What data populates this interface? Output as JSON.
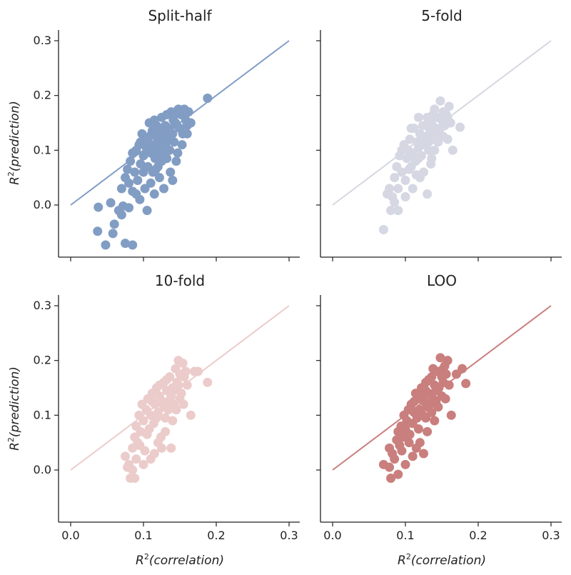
{
  "chart_data": {
    "type": "scatter",
    "layout": "2x2 grid, shared axes",
    "xlabel": "R²(correlation)",
    "ylabel": "R²(prediction)",
    "xlabel_parts": {
      "base": "R",
      "sup": "2",
      "inner": "(correlation)"
    },
    "ylabel_parts": {
      "base": "R",
      "sup": "2",
      "inner": "(prediction)"
    },
    "xlim": [
      -0.015,
      0.315
    ],
    "ylim": [
      -0.09,
      0.32
    ],
    "xticks": [
      0.0,
      0.1,
      0.2,
      0.3
    ],
    "yticks": [
      0.0,
      0.1,
      0.2,
      0.3
    ],
    "xtick_labels": [
      "0.0",
      "0.1",
      "0.2",
      "0.3"
    ],
    "ytick_labels": [
      "0.0",
      "0.1",
      "0.2",
      "0.3"
    ],
    "reference_line": {
      "x": [
        0.0,
        0.3
      ],
      "y": [
        0.0,
        0.3
      ]
    },
    "panels": [
      {
        "title": "Split-half",
        "color": "#829dc4",
        "points": [
          [
            0.038,
            -0.004
          ],
          [
            0.055,
            0.004
          ],
          [
            0.037,
            -0.048
          ],
          [
            0.048,
            -0.073
          ],
          [
            0.058,
            -0.052
          ],
          [
            0.06,
            -0.035
          ],
          [
            0.066,
            -0.01
          ],
          [
            0.07,
            -0.018
          ],
          [
            0.072,
            -0.002
          ],
          [
            0.075,
            -0.07
          ],
          [
            0.085,
            -0.073
          ],
          [
            0.08,
            -0.005
          ],
          [
            0.07,
            0.03
          ],
          [
            0.075,
            0.05
          ],
          [
            0.078,
            0.065
          ],
          [
            0.08,
            0.04
          ],
          [
            0.082,
            0.08
          ],
          [
            0.085,
            0.025
          ],
          [
            0.088,
            0.06
          ],
          [
            0.09,
            0.1
          ],
          [
            0.092,
            0.045
          ],
          [
            0.094,
            0.11
          ],
          [
            0.096,
            0.075
          ],
          [
            0.098,
            0.13
          ],
          [
            0.1,
            0.09
          ],
          [
            0.102,
            0.03
          ],
          [
            0.104,
            0.105
          ],
          [
            0.105,
            0.12
          ],
          [
            0.106,
            0.07
          ],
          [
            0.108,
            0.15
          ],
          [
            0.11,
            0.095
          ],
          [
            0.112,
            0.135
          ],
          [
            0.113,
            0.06
          ],
          [
            0.114,
            0.11
          ],
          [
            0.115,
            0.155
          ],
          [
            0.116,
            0.085
          ],
          [
            0.118,
            0.125
          ],
          [
            0.12,
            0.1
          ],
          [
            0.121,
            0.14
          ],
          [
            0.122,
            0.05
          ],
          [
            0.124,
            0.115
          ],
          [
            0.125,
            0.16
          ],
          [
            0.126,
            0.09
          ],
          [
            0.128,
            0.13
          ],
          [
            0.13,
            0.145
          ],
          [
            0.131,
            0.105
          ],
          [
            0.132,
            0.165
          ],
          [
            0.134,
            0.12
          ],
          [
            0.135,
            0.14
          ],
          [
            0.136,
            0.1
          ],
          [
            0.138,
            0.17
          ],
          [
            0.14,
            0.13
          ],
          [
            0.141,
            0.155
          ],
          [
            0.142,
            0.115
          ],
          [
            0.144,
            0.15
          ],
          [
            0.145,
            0.08
          ],
          [
            0.146,
            0.145
          ],
          [
            0.148,
            0.175
          ],
          [
            0.15,
            0.14
          ],
          [
            0.152,
            0.165
          ],
          [
            0.154,
            0.13
          ],
          [
            0.156,
            0.175
          ],
          [
            0.158,
            0.155
          ],
          [
            0.16,
            0.145
          ],
          [
            0.162,
            0.17
          ],
          [
            0.165,
            0.15
          ],
          [
            0.188,
            0.195
          ],
          [
            0.105,
            -0.01
          ],
          [
            0.095,
            0.01
          ],
          [
            0.115,
            0.02
          ],
          [
            0.128,
            0.03
          ],
          [
            0.12,
            0.07
          ],
          [
            0.125,
            0.08
          ],
          [
            0.137,
            0.06
          ],
          [
            0.147,
            0.095
          ],
          [
            0.153,
            0.11
          ],
          [
            0.14,
            0.045
          ],
          [
            0.09,
            0.02
          ],
          [
            0.1,
            0.06
          ],
          [
            0.11,
            0.04
          ],
          [
            0.085,
            0.095
          ],
          [
            0.108,
            0.125
          ],
          [
            0.118,
            0.145
          ],
          [
            0.13,
            0.11
          ],
          [
            0.143,
            0.165
          ],
          [
            0.096,
            0.115
          ],
          [
            0.132,
            0.085
          ],
          [
            0.122,
            0.095
          ],
          [
            0.137,
            0.125
          ],
          [
            0.117,
            0.065
          ],
          [
            0.16,
            0.13
          ]
        ]
      },
      {
        "title": "5-fold",
        "color": "#d5d7e3",
        "points": [
          [
            0.07,
            -0.045
          ],
          [
            0.08,
            -0.01
          ],
          [
            0.082,
            0.015
          ],
          [
            0.085,
            0.005
          ],
          [
            0.09,
            -0.01
          ],
          [
            0.075,
            0.02
          ],
          [
            0.078,
            0.03
          ],
          [
            0.085,
            0.05
          ],
          [
            0.088,
            0.07
          ],
          [
            0.09,
            0.03
          ],
          [
            0.092,
            0.09
          ],
          [
            0.095,
            0.06
          ],
          [
            0.098,
            0.11
          ],
          [
            0.1,
            0.045
          ],
          [
            0.102,
            0.085
          ],
          [
            0.104,
            0.1
          ],
          [
            0.106,
            0.12
          ],
          [
            0.108,
            0.07
          ],
          [
            0.11,
            0.095
          ],
          [
            0.112,
            0.14
          ],
          [
            0.114,
            0.08
          ],
          [
            0.116,
            0.115
          ],
          [
            0.118,
            0.105
          ],
          [
            0.12,
            0.13
          ],
          [
            0.122,
            0.09
          ],
          [
            0.124,
            0.145
          ],
          [
            0.126,
            0.11
          ],
          [
            0.128,
            0.125
          ],
          [
            0.13,
            0.16
          ],
          [
            0.132,
            0.1
          ],
          [
            0.134,
            0.135
          ],
          [
            0.136,
            0.15
          ],
          [
            0.138,
            0.12
          ],
          [
            0.14,
            0.175
          ],
          [
            0.142,
            0.14
          ],
          [
            0.144,
            0.16
          ],
          [
            0.146,
            0.13
          ],
          [
            0.148,
            0.19
          ],
          [
            0.15,
            0.155
          ],
          [
            0.152,
            0.17
          ],
          [
            0.154,
            0.145
          ],
          [
            0.156,
            0.165
          ],
          [
            0.158,
            0.12
          ],
          [
            0.16,
            0.18
          ],
          [
            0.162,
            0.15
          ],
          [
            0.165,
            0.1
          ],
          [
            0.175,
            0.142
          ],
          [
            0.12,
            0.05
          ],
          [
            0.125,
            0.06
          ],
          [
            0.13,
            0.02
          ],
          [
            0.11,
            0.03
          ],
          [
            0.1,
            0.015
          ],
          [
            0.115,
            0.055
          ],
          [
            0.135,
            0.075
          ],
          [
            0.14,
            0.1
          ],
          [
            0.145,
            0.115
          ],
          [
            0.105,
            0.065
          ],
          [
            0.095,
            0.1
          ],
          [
            0.118,
            0.16
          ],
          [
            0.128,
            0.145
          ],
          [
            0.138,
            0.165
          ],
          [
            0.148,
            0.14
          ],
          [
            0.152,
            0.125
          ],
          [
            0.158,
            0.16
          ],
          [
            0.112,
            0.09
          ],
          [
            0.122,
            0.125
          ],
          [
            0.132,
            0.115
          ],
          [
            0.142,
            0.125
          ],
          [
            0.108,
            0.14
          ],
          [
            0.118,
            0.085
          ],
          [
            0.136,
            0.085
          ]
        ]
      },
      {
        "title": "10-fold",
        "color": "#ebcccb",
        "points": [
          [
            0.075,
            0.025
          ],
          [
            0.078,
            0.005
          ],
          [
            0.082,
            -0.015
          ],
          [
            0.088,
            -0.015
          ],
          [
            0.085,
            0.0
          ],
          [
            0.08,
            0.01
          ],
          [
            0.09,
            0.02
          ],
          [
            0.085,
            0.04
          ],
          [
            0.088,
            0.06
          ],
          [
            0.09,
            0.08
          ],
          [
            0.092,
            0.05
          ],
          [
            0.094,
            0.1
          ],
          [
            0.096,
            0.07
          ],
          [
            0.098,
            0.12
          ],
          [
            0.1,
            0.09
          ],
          [
            0.102,
            0.035
          ],
          [
            0.104,
            0.11
          ],
          [
            0.106,
            0.13
          ],
          [
            0.108,
            0.075
          ],
          [
            0.11,
            0.1
          ],
          [
            0.112,
            0.14
          ],
          [
            0.114,
            0.085
          ],
          [
            0.116,
            0.12
          ],
          [
            0.118,
            0.15
          ],
          [
            0.12,
            0.105
          ],
          [
            0.122,
            0.135
          ],
          [
            0.124,
            0.06
          ],
          [
            0.126,
            0.125
          ],
          [
            0.128,
            0.16
          ],
          [
            0.13,
            0.095
          ],
          [
            0.132,
            0.145
          ],
          [
            0.134,
            0.11
          ],
          [
            0.136,
            0.17
          ],
          [
            0.138,
            0.135
          ],
          [
            0.14,
            0.15
          ],
          [
            0.142,
            0.12
          ],
          [
            0.144,
            0.185
          ],
          [
            0.146,
            0.16
          ],
          [
            0.148,
            0.2
          ],
          [
            0.15,
            0.175
          ],
          [
            0.152,
            0.14
          ],
          [
            0.154,
            0.195
          ],
          [
            0.156,
            0.17
          ],
          [
            0.158,
            0.18
          ],
          [
            0.16,
            0.155
          ],
          [
            0.165,
            0.1
          ],
          [
            0.17,
            0.18
          ],
          [
            0.175,
            0.18
          ],
          [
            0.188,
            0.16
          ],
          [
            0.1,
            0.01
          ],
          [
            0.11,
            0.02
          ],
          [
            0.12,
            0.05
          ],
          [
            0.115,
            0.03
          ],
          [
            0.125,
            0.04
          ],
          [
            0.138,
            0.04
          ],
          [
            0.13,
            0.07
          ],
          [
            0.14,
            0.09
          ],
          [
            0.145,
            0.11
          ],
          [
            0.15,
            0.13
          ],
          [
            0.155,
            0.12
          ],
          [
            0.095,
            0.045
          ],
          [
            0.105,
            0.065
          ],
          [
            0.118,
            0.095
          ],
          [
            0.128,
            0.115
          ],
          [
            0.136,
            0.125
          ],
          [
            0.142,
            0.145
          ],
          [
            0.148,
            0.155
          ],
          [
            0.132,
            0.165
          ],
          [
            0.122,
            0.155
          ],
          [
            0.112,
            0.125
          ]
        ]
      },
      {
        "title": "LOO",
        "color": "#c97f7d",
        "points": [
          [
            0.07,
            0.01
          ],
          [
            0.078,
            0.005
          ],
          [
            0.08,
            -0.015
          ],
          [
            0.09,
            -0.008
          ],
          [
            0.085,
            0.02
          ],
          [
            0.078,
            0.04
          ],
          [
            0.082,
            0.03
          ],
          [
            0.088,
            0.055
          ],
          [
            0.09,
            0.07
          ],
          [
            0.092,
            0.045
          ],
          [
            0.094,
            0.08
          ],
          [
            0.096,
            0.06
          ],
          [
            0.098,
            0.1
          ],
          [
            0.1,
            0.075
          ],
          [
            0.102,
            0.09
          ],
          [
            0.104,
            0.11
          ],
          [
            0.106,
            0.065
          ],
          [
            0.108,
            0.12
          ],
          [
            0.11,
            0.085
          ],
          [
            0.112,
            0.105
          ],
          [
            0.114,
            0.14
          ],
          [
            0.116,
            0.095
          ],
          [
            0.118,
            0.13
          ],
          [
            0.12,
            0.11
          ],
          [
            0.122,
            0.15
          ],
          [
            0.124,
            0.1
          ],
          [
            0.126,
            0.125
          ],
          [
            0.128,
            0.16
          ],
          [
            0.13,
            0.115
          ],
          [
            0.132,
            0.14
          ],
          [
            0.134,
            0.12
          ],
          [
            0.136,
            0.17
          ],
          [
            0.138,
            0.13
          ],
          [
            0.14,
            0.155
          ],
          [
            0.142,
            0.145
          ],
          [
            0.144,
            0.18
          ],
          [
            0.146,
            0.15
          ],
          [
            0.148,
            0.205
          ],
          [
            0.15,
            0.17
          ],
          [
            0.152,
            0.16
          ],
          [
            0.154,
            0.19
          ],
          [
            0.156,
            0.175
          ],
          [
            0.158,
            0.2
          ],
          [
            0.16,
            0.155
          ],
          [
            0.163,
            0.1
          ],
          [
            0.17,
            0.175
          ],
          [
            0.178,
            0.185
          ],
          [
            0.183,
            0.158
          ],
          [
            0.1,
            0.01
          ],
          [
            0.11,
            0.025
          ],
          [
            0.12,
            0.05
          ],
          [
            0.125,
            0.03
          ],
          [
            0.115,
            0.04
          ],
          [
            0.13,
            0.07
          ],
          [
            0.14,
            0.09
          ],
          [
            0.145,
            0.115
          ],
          [
            0.15,
            0.135
          ],
          [
            0.155,
            0.13
          ],
          [
            0.095,
            0.035
          ],
          [
            0.105,
            0.05
          ],
          [
            0.118,
            0.075
          ],
          [
            0.128,
            0.095
          ],
          [
            0.136,
            0.105
          ],
          [
            0.142,
            0.125
          ],
          [
            0.132,
            0.165
          ],
          [
            0.122,
            0.135
          ],
          [
            0.112,
            0.125
          ],
          [
            0.152,
            0.185
          ],
          [
            0.138,
            0.185
          ],
          [
            0.128,
            0.145
          ]
        ]
      }
    ]
  }
}
